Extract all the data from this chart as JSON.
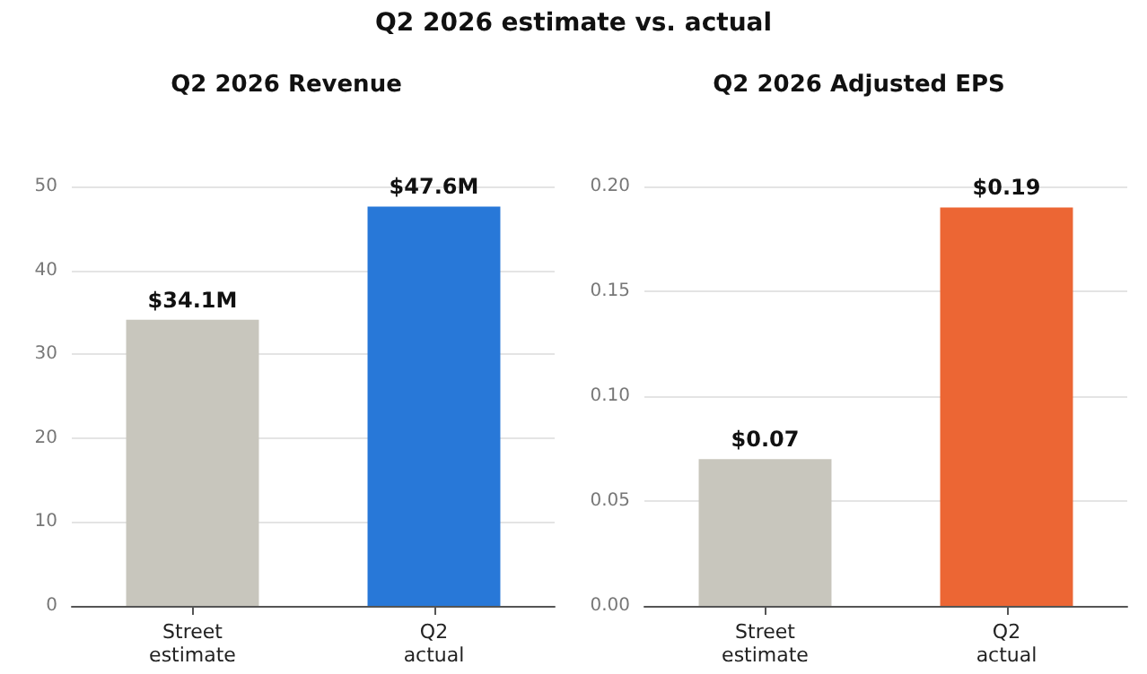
{
  "chart_data": [
    {
      "type": "bar",
      "title": "Q2 2026 Revenue",
      "annotations": [
        "Q2 2026 estimate vs. actual"
      ],
      "categories": [
        "Street\nestimate",
        "Q2\nactual"
      ],
      "values": [
        34.1,
        47.6
      ],
      "colors": [
        "#c8c6bd",
        "#2878d8"
      ],
      "value_labels": [
        "$34.1M",
        "$47.6M"
      ],
      "ylim": [
        0,
        50
      ],
      "yticks": [
        0,
        10,
        20,
        30,
        40,
        50
      ],
      "grid": "y"
    },
    {
      "type": "bar",
      "title": "Q2 2026 Adjusted EPS",
      "categories": [
        "Street\nestimate",
        "Q2\nactual"
      ],
      "values": [
        0.07,
        0.19
      ],
      "colors": [
        "#c8c6bd",
        "#ec6634"
      ],
      "value_labels": [
        "$0.07",
        "$0.19"
      ],
      "ylim": [
        0,
        0.2
      ],
      "yticks": [
        {
          "value": 0,
          "label": "0.00"
        },
        0.05,
        {
          "value": 0.1,
          "label": "0.10"
        },
        0.15,
        {
          "value": 0.2,
          "label": "0.20"
        }
      ],
      "grid": "y"
    }
  ]
}
